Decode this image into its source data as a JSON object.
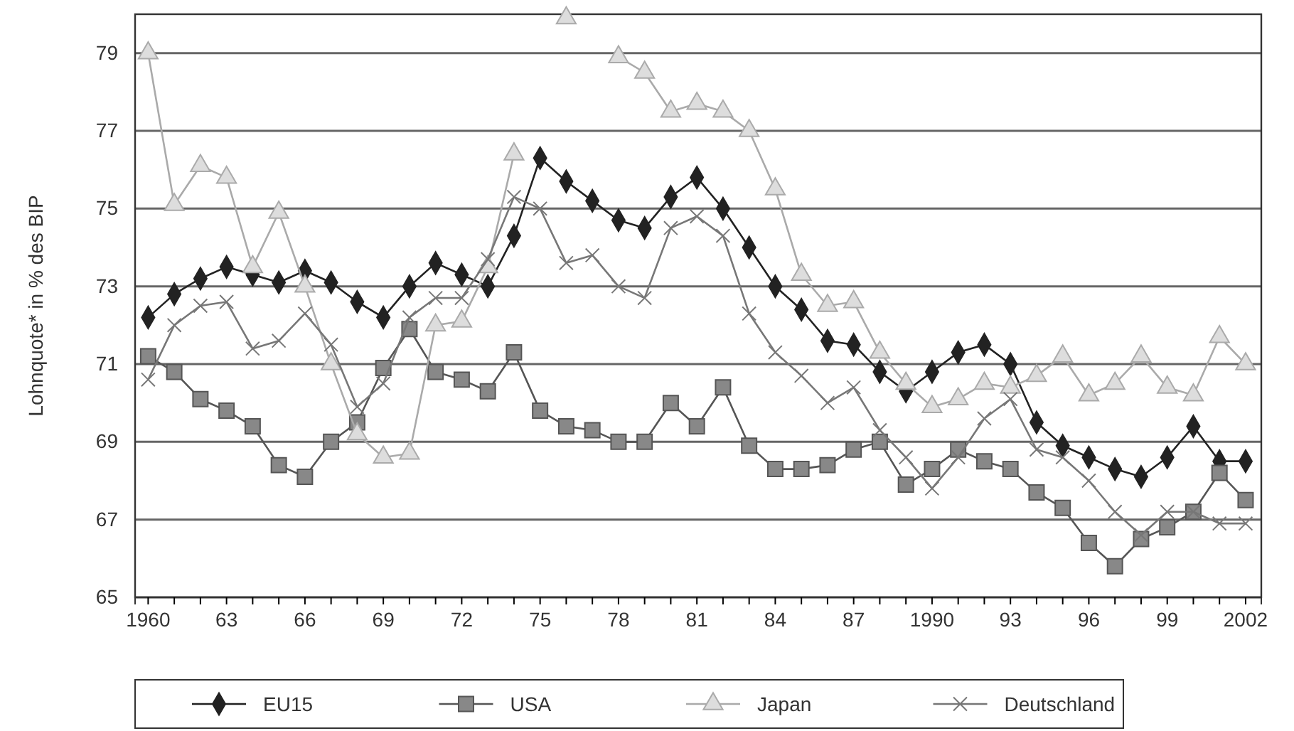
{
  "chart_data": {
    "type": "line",
    "ylabel": "Lohnquote* in % des BIP",
    "x": [
      1960,
      1961,
      1962,
      1963,
      1964,
      1965,
      1966,
      1967,
      1968,
      1969,
      1970,
      1971,
      1972,
      1973,
      1974,
      1975,
      1976,
      1977,
      1978,
      1979,
      1980,
      1981,
      1982,
      1983,
      1984,
      1985,
      1986,
      1987,
      1988,
      1989,
      1990,
      1991,
      1992,
      1993,
      1994,
      1995,
      1996,
      1997,
      1998,
      1999,
      2000,
      2001,
      2002
    ],
    "xlim": [
      1959.5,
      2002.6
    ],
    "xticks": [
      {
        "value": 1960,
        "label": "1960"
      },
      {
        "value": 1961,
        "label": null
      },
      {
        "value": 1962,
        "label": null
      },
      {
        "value": 1963,
        "label": "63"
      },
      {
        "value": 1964,
        "label": null
      },
      {
        "value": 1965,
        "label": null
      },
      {
        "value": 1966,
        "label": "66"
      },
      {
        "value": 1967,
        "label": null
      },
      {
        "value": 1968,
        "label": null
      },
      {
        "value": 1969,
        "label": "69"
      },
      {
        "value": 1970,
        "label": null
      },
      {
        "value": 1971,
        "label": null
      },
      {
        "value": 1972,
        "label": "72"
      },
      {
        "value": 1973,
        "label": null
      },
      {
        "value": 1974,
        "label": null
      },
      {
        "value": 1975,
        "label": "75"
      },
      {
        "value": 1976,
        "label": null
      },
      {
        "value": 1977,
        "label": null
      },
      {
        "value": 1978,
        "label": "78"
      },
      {
        "value": 1979,
        "label": null
      },
      {
        "value": 1980,
        "label": null
      },
      {
        "value": 1981,
        "label": "81"
      },
      {
        "value": 1982,
        "label": null
      },
      {
        "value": 1983,
        "label": null
      },
      {
        "value": 1984,
        "label": "84"
      },
      {
        "value": 1985,
        "label": null
      },
      {
        "value": 1986,
        "label": null
      },
      {
        "value": 1987,
        "label": "87"
      },
      {
        "value": 1988,
        "label": null
      },
      {
        "value": 1989,
        "label": null
      },
      {
        "value": 1990,
        "label": "1990"
      },
      {
        "value": 1991,
        "label": null
      },
      {
        "value": 1992,
        "label": null
      },
      {
        "value": 1993,
        "label": "93"
      },
      {
        "value": 1994,
        "label": null
      },
      {
        "value": 1995,
        "label": null
      },
      {
        "value": 1996,
        "label": "96"
      },
      {
        "value": 1997,
        "label": null
      },
      {
        "value": 1998,
        "label": null
      },
      {
        "value": 1999,
        "label": "99"
      },
      {
        "value": 2000,
        "label": null
      },
      {
        "value": 2001,
        "label": null
      },
      {
        "value": 2002,
        "label": "2002"
      }
    ],
    "ylim": [
      65,
      80
    ],
    "yticks": [
      65,
      67,
      69,
      71,
      73,
      75,
      77,
      79
    ],
    "grid": "y",
    "legend": "bottom",
    "line_style": "solid",
    "series": [
      {
        "name": "EU15",
        "color": "#222222",
        "marker": "diamond",
        "values": [
          72.2,
          72.8,
          73.2,
          73.5,
          73.3,
          73.1,
          73.4,
          73.1,
          72.6,
          72.2,
          73.0,
          73.6,
          73.3,
          73.0,
          74.3,
          76.3,
          75.7,
          75.2,
          74.7,
          74.5,
          75.3,
          75.8,
          75.0,
          74.0,
          73.0,
          72.4,
          71.6,
          71.5,
          70.8,
          70.3,
          70.8,
          71.3,
          71.5,
          71.0,
          69.5,
          68.9,
          68.6,
          68.3,
          68.1,
          68.6,
          69.4,
          68.5,
          68.5
        ]
      },
      {
        "name": "USA",
        "color": "#555555",
        "marker": "square",
        "values": [
          71.2,
          70.8,
          70.1,
          69.8,
          69.4,
          68.4,
          68.1,
          69.0,
          69.5,
          70.9,
          71.9,
          70.8,
          70.6,
          70.3,
          71.3,
          69.8,
          69.4,
          69.3,
          69.0,
          69.0,
          70.0,
          69.4,
          70.4,
          68.9,
          68.3,
          68.3,
          68.4,
          68.8,
          69.0,
          67.9,
          68.3,
          68.8,
          68.5,
          68.3,
          67.7,
          67.3,
          66.4,
          65.8,
          66.5,
          66.8,
          67.2,
          68.2,
          67.5
        ]
      },
      {
        "name": "Japan",
        "color": "#aaaaaa",
        "marker": "triangle",
        "values": [
          79.0,
          75.1,
          76.1,
          75.8,
          73.5,
          74.9,
          73.0,
          71.0,
          69.2,
          68.6,
          68.7,
          72.0,
          72.1,
          73.5,
          76.4,
          null,
          79.9,
          null,
          78.9,
          78.5,
          77.5,
          77.7,
          77.5,
          77.0,
          75.5,
          73.3,
          72.5,
          72.6,
          71.3,
          70.5,
          69.9,
          70.1,
          70.5,
          70.4,
          70.7,
          71.2,
          70.2,
          70.5,
          71.2,
          70.4,
          70.2,
          71.7,
          71.0
        ]
      },
      {
        "name": "Deutschland",
        "color": "#777777",
        "marker": "cross",
        "values": [
          70.6,
          72.0,
          72.5,
          72.6,
          71.4,
          71.6,
          72.3,
          71.5,
          69.9,
          70.5,
          72.2,
          72.7,
          72.7,
          73.7,
          75.3,
          75.0,
          73.6,
          73.8,
          73.0,
          72.7,
          74.5,
          74.8,
          74.3,
          72.3,
          71.3,
          70.7,
          70.0,
          70.4,
          69.3,
          68.6,
          67.8,
          68.6,
          69.6,
          70.1,
          68.8,
          68.6,
          68.0,
          67.2,
          66.6,
          67.2,
          67.2,
          66.9,
          66.9
        ]
      }
    ]
  }
}
